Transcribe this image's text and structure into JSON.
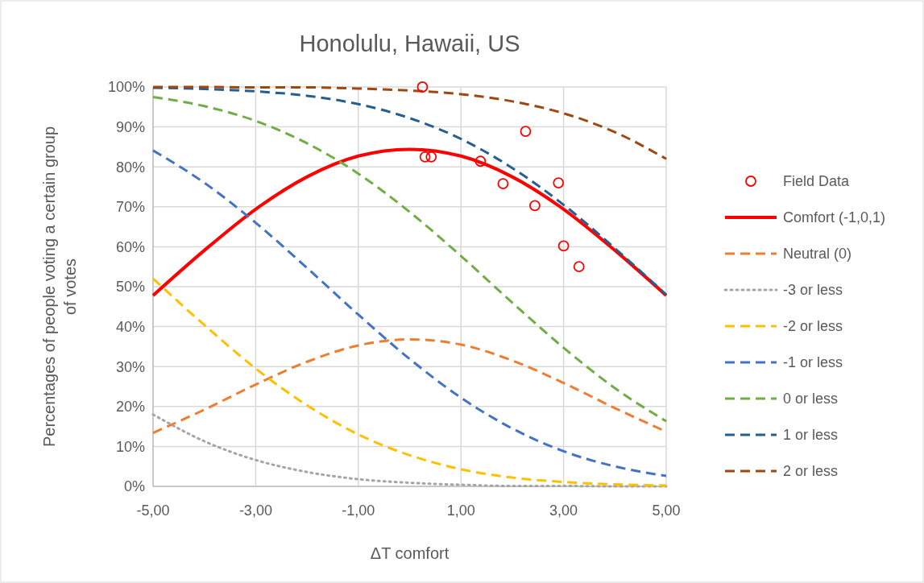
{
  "chart_data": {
    "type": "line",
    "title": "Honolulu, Hawaii, US",
    "xlabel": "ΔT comfort",
    "ylabel": "Percentages of people voting a certain group of votes",
    "xlim": [
      -5,
      5
    ],
    "ylim": [
      0,
      100
    ],
    "xticks": [
      {
        "value": -5,
        "label": "-5,00"
      },
      {
        "value": -3,
        "label": "-3,00"
      },
      {
        "value": -1,
        "label": "-1,00"
      },
      {
        "value": 1,
        "label": "1,00"
      },
      {
        "value": 3,
        "label": "3,00"
      },
      {
        "value": 5,
        "label": "5,00"
      }
    ],
    "yticks": [
      {
        "value": 0,
        "label": "0%"
      },
      {
        "value": 10,
        "label": "10%"
      },
      {
        "value": 20,
        "label": "20%"
      },
      {
        "value": 30,
        "label": "30%"
      },
      {
        "value": 40,
        "label": "40%"
      },
      {
        "value": 50,
        "label": "50%"
      },
      {
        "value": 60,
        "label": "60%"
      },
      {
        "value": 70,
        "label": "70%"
      },
      {
        "value": 80,
        "label": "80%"
      },
      {
        "value": 90,
        "label": "90%"
      },
      {
        "value": 100,
        "label": "100%"
      }
    ],
    "grid": true,
    "legend": "right",
    "x": [
      -5,
      -4,
      -3,
      -2,
      -1,
      0,
      1,
      2,
      3,
      4,
      5
    ],
    "series": [
      {
        "name": "Field Data",
        "type": "scatter",
        "marker": "circle",
        "color": "#ff0000",
        "x": [
          0.25,
          0.3,
          0.42,
          1.38,
          1.82,
          2.26,
          2.9,
          2.44,
          3.0,
          3.3
        ],
        "values": [
          100,
          82.5,
          82.5,
          81.4,
          75.8,
          88.9,
          76,
          70.3,
          60.2,
          55
        ]
      },
      {
        "name": "Comfort (-1,0,1)",
        "color": "#ff0000",
        "line_style": "solid",
        "values": [
          47.8,
          59.1,
          69.4,
          77.5,
          82.7,
          84.4,
          82.7,
          77.5,
          69.4,
          59.1,
          47.8
        ]
      },
      {
        "name": "Neutral (0)",
        "color": "#ed7d31",
        "line_style": "dashed",
        "values": [
          13.4,
          19.2,
          25.5,
          31.2,
          35.3,
          36.8,
          35.5,
          31.5,
          25.9,
          19.6,
          13.7
        ]
      },
      {
        "name": "-3 or less",
        "color": "#a5a5a5",
        "line_style": "dotted",
        "values": [
          18.0,
          11.3,
          6.6,
          3.6,
          1.8,
          0.9,
          0.4,
          0.1,
          0.1,
          0,
          0
        ]
      },
      {
        "name": "-2 or less",
        "color": "#ffc000",
        "line_style": "dashed",
        "values": [
          52.0,
          40.4,
          29.5,
          20.3,
          13.0,
          7.8,
          4.3,
          2.2,
          1.1,
          0.5,
          0.2
        ]
      },
      {
        "name": "-1 or less",
        "color": "#4472c4",
        "line_style": "dashed",
        "values": [
          84.1,
          76.0,
          66.0,
          54.7,
          43.0,
          31.9,
          22.2,
          14.5,
          8.8,
          5.0,
          2.6
        ]
      },
      {
        "name": "0 or less",
        "color": "#70ad47",
        "line_style": "dashed",
        "values": [
          97.5,
          95.2,
          91.5,
          85.9,
          78.3,
          68.7,
          57.7,
          46.0,
          34.7,
          24.6,
          16.3
        ]
      },
      {
        "name": "1 or less",
        "color": "#255e91",
        "line_style": "dashed",
        "values": [
          99.8,
          99.5,
          98.9,
          97.8,
          95.7,
          92.2,
          87.0,
          79.7,
          70.5,
          59.6,
          48.0
        ]
      },
      {
        "name": "2 or less",
        "color": "#9e480e",
        "line_style": "dashed",
        "values": [
          100,
          100,
          99.9,
          99.9,
          99.6,
          99.1,
          98.2,
          96.4,
          93.4,
          88.7,
          82.0
        ]
      }
    ]
  }
}
